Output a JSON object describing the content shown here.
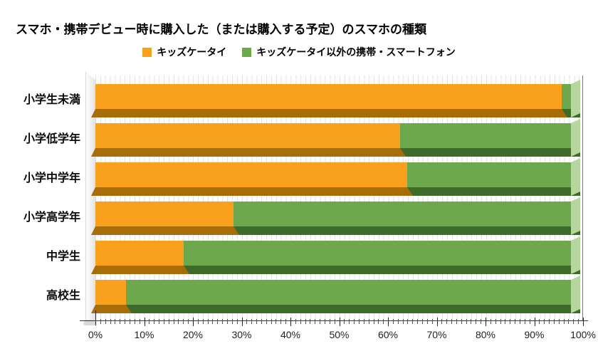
{
  "title": "スマホ・携帯デビュー時に購入した（または購入する予定）のスマホの種類",
  "legend": {
    "position": "top",
    "items": [
      {
        "label": "キッズケータイ",
        "color": "#F9A11C"
      },
      {
        "label": "キッズケータイ以外の携帯・スマートフォン",
        "color": "#6DA84D"
      }
    ]
  },
  "chart_data": {
    "type": "bar",
    "orientation": "horizontal",
    "stacked": true,
    "effect": "3d",
    "unit": "%",
    "title": "スマホ・携帯デビュー時に購入した（または購入する予定）のスマホの種類",
    "categories": [
      "小学生未満",
      "小学低学年",
      "小学中学年",
      "小学高学年",
      "中学生",
      "高校生"
    ],
    "series": [
      {
        "name": "キッズケータイ",
        "color": "#F9A11C",
        "values": [
          98,
          64,
          65.5,
          29,
          18.5,
          6.5
        ]
      },
      {
        "name": "キッズケータイ以外の携帯・スマートフォン",
        "color": "#6DA84D",
        "values": [
          2,
          36,
          34.5,
          71,
          81.5,
          93.5
        ]
      }
    ],
    "x_axis": {
      "min": 0,
      "max": 100,
      "tick_labels": [
        "0%",
        "10%",
        "20%",
        "30%",
        "40%",
        "50%",
        "60%",
        "70%",
        "80%",
        "90%",
        "100%"
      ],
      "minor_tick_step": 1,
      "major_tick_step": 10
    },
    "y_axis_label": "",
    "x_axis_label": "",
    "grid": true,
    "legend_position": "top",
    "style_3d": {
      "bevel_colors": [
        "#A86D06",
        "#3F6B2A"
      ],
      "endcap_color": "#B5D79E",
      "wall_color": "#ECECEC"
    }
  }
}
